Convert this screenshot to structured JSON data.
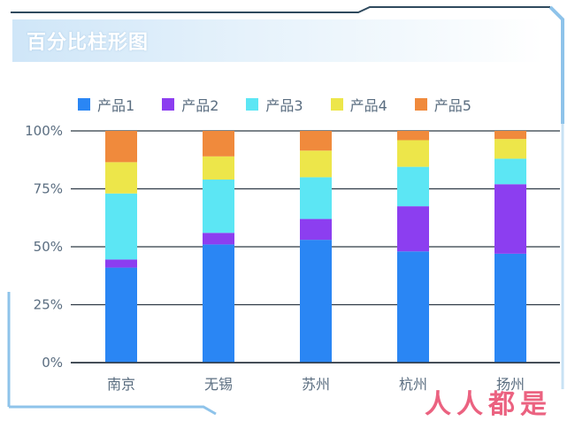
{
  "chart_data": {
    "type": "bar",
    "stacked": true,
    "percent": true,
    "title": "百分比柱形图",
    "categories": [
      "南京",
      "无锡",
      "苏州",
      "杭州",
      "扬州"
    ],
    "series": [
      {
        "name": "产品1",
        "color": "#2a86f4",
        "values": [
          41,
          51,
          53,
          48,
          47
        ]
      },
      {
        "name": "产品2",
        "color": "#8c3ef0",
        "values": [
          3.5,
          5,
          9,
          19.5,
          30
        ]
      },
      {
        "name": "产品3",
        "color": "#5ce6f4",
        "values": [
          28.5,
          23,
          18,
          17,
          11
        ]
      },
      {
        "name": "产品4",
        "color": "#ede64a",
        "values": [
          13.5,
          10,
          11.5,
          11.5,
          8.5
        ]
      },
      {
        "name": "产品5",
        "color": "#f08a3c",
        "values": [
          13.5,
          11,
          8.5,
          4,
          3.5
        ]
      }
    ],
    "yticks": [
      "0%",
      "25%",
      "50%",
      "75%",
      "100%"
    ],
    "ylim": [
      0,
      100
    ],
    "legend_position": "top",
    "grid": true
  },
  "watermark": "人人都是"
}
